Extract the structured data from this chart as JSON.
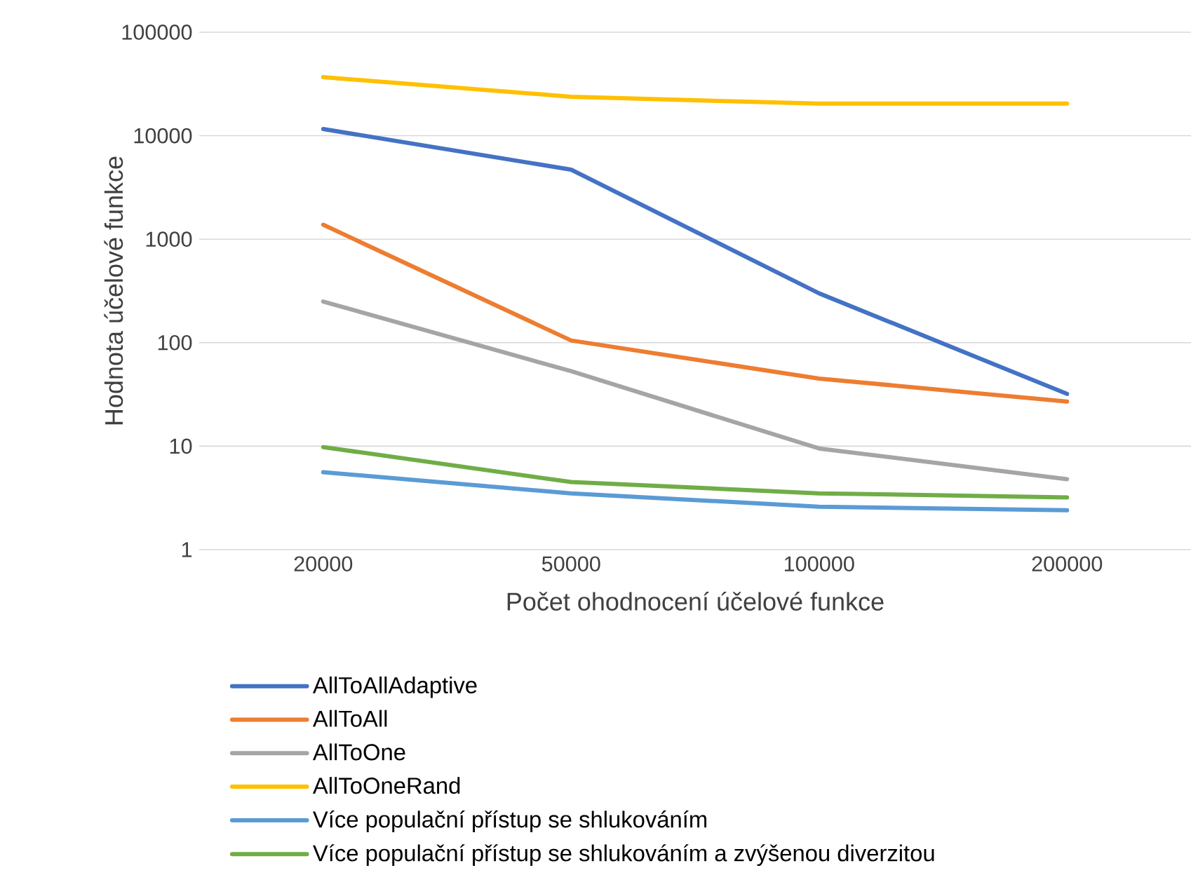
{
  "chart_data": {
    "type": "line",
    "xlabel": "Počet ohodnocení účelové funkce",
    "ylabel": "Hodnota účelové funkce",
    "categories": [
      "20000",
      "50000",
      "100000",
      "200000"
    ],
    "series": [
      {
        "name": "AllToAllAdaptive",
        "color": "#4472c4",
        "values": [
          11600,
          4700,
          300,
          32
        ]
      },
      {
        "name": "AllToAll",
        "color": "#ed7d31",
        "values": [
          1380,
          105,
          45,
          27
        ]
      },
      {
        "name": "AllToOne",
        "color": "#a5a5a5",
        "values": [
          250,
          53,
          9.5,
          4.8
        ]
      },
      {
        "name": "AllToOneRand",
        "color": "#ffc000",
        "values": [
          36800,
          23800,
          20400,
          20400
        ]
      },
      {
        "name": "Více populační přístup se shlukováním",
        "color": "#5b9bd5",
        "values": [
          5.6,
          3.5,
          2.6,
          2.4
        ]
      },
      {
        "name": "Více populační přístup se shlukováním a zvýšenou diverzitou",
        "color": "#70ad47",
        "values": [
          9.8,
          4.5,
          3.5,
          3.2
        ]
      }
    ],
    "log": "y",
    "ylim": [
      1,
      100000
    ],
    "yticks": [
      1,
      10,
      100,
      1000,
      10000,
      100000
    ],
    "grid": "y",
    "legend": "bottom"
  }
}
